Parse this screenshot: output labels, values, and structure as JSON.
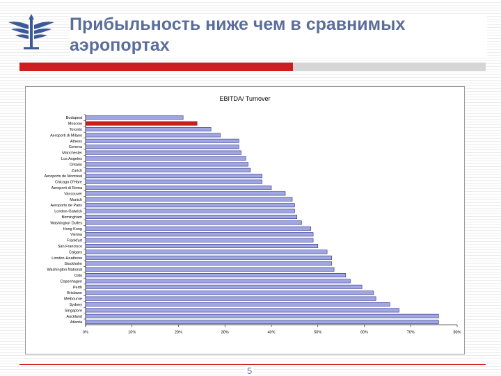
{
  "slide": {
    "title_line1": "Прибыльность ниже чем в сравнимых",
    "title_line2": "аэропортах",
    "page_number": "5",
    "colors": {
      "title": "#5b6e9a",
      "accent_red": "#cc1e1e",
      "bar_fill": "#9fa6e0",
      "bar_border": "#2c2f8c",
      "highlight_bar": "#cc1e1e"
    },
    "logo_icon": "airline-wings-logo"
  },
  "chart_data": {
    "type": "bar",
    "orientation": "horizontal",
    "title": "EBITDA/ Turnover",
    "xlabel": "",
    "ylabel": "",
    "xlim": [
      0,
      0.8
    ],
    "x_ticks": [
      "0%",
      "10%",
      "20%",
      "30%",
      "40%",
      "50%",
      "60%",
      "70%",
      "80%"
    ],
    "categories": [
      "Budapest",
      "Moscow",
      "Toronto",
      "Aeroporti di Milano",
      "Athens",
      "Geneva",
      "Manchester",
      "Los Angeles",
      "Ontario",
      "Zurich",
      "Aeroports de Montreal",
      "Chicago O'Hare",
      "Aeroporti di Roma",
      "Vancouver",
      "Munich",
      "Aeroports de Paris",
      "London-Gatwick",
      "Birmingham",
      "Washington Dulles",
      "Hong Kong",
      "Vienna",
      "Frankfurt",
      "San Francisco",
      "Calgary",
      "London-Heathrow",
      "Stockholm",
      "Washington National",
      "Oslo",
      "Copenhagen",
      "Perth",
      "Brisbane",
      "Melbourne",
      "Sydney",
      "Singapore",
      "Auckland",
      "Atlanta"
    ],
    "values": [
      0.21,
      0.24,
      0.27,
      0.29,
      0.33,
      0.33,
      0.335,
      0.345,
      0.35,
      0.355,
      0.38,
      0.38,
      0.4,
      0.43,
      0.445,
      0.45,
      0.45,
      0.455,
      0.465,
      0.485,
      0.49,
      0.49,
      0.5,
      0.52,
      0.53,
      0.53,
      0.535,
      0.56,
      0.57,
      0.595,
      0.62,
      0.625,
      0.655,
      0.675,
      0.76,
      0.76
    ],
    "highlight": "Moscow",
    "grid": false,
    "legend": "none"
  }
}
